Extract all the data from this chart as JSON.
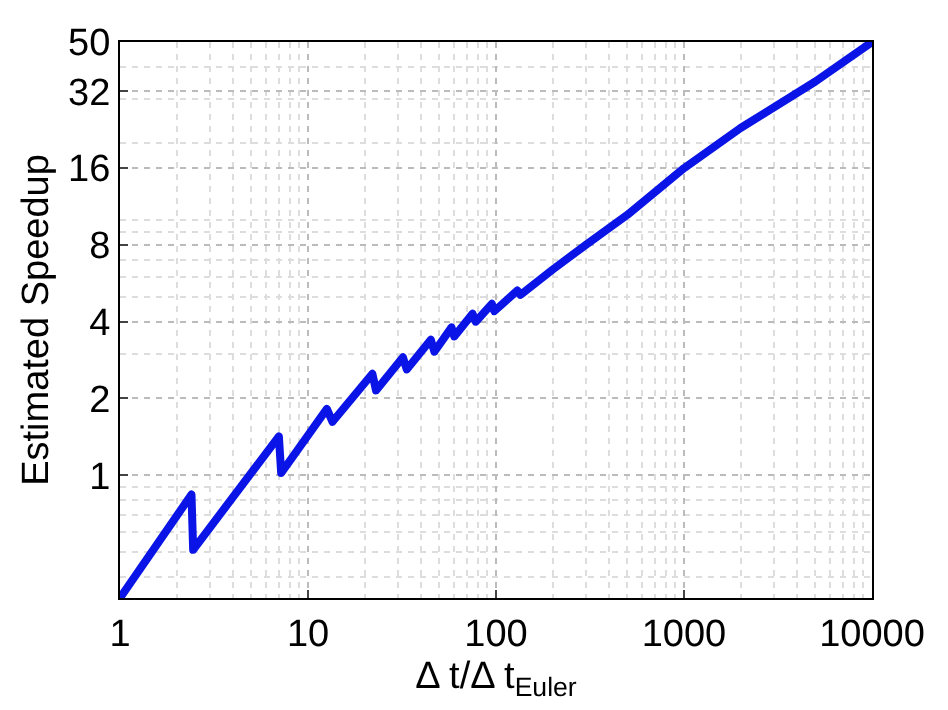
{
  "chart_data": {
    "type": "line",
    "xlabel": "Δ t/Δ t$_{Euler}$",
    "ylabel": "Estimated Speedup",
    "log": "xy",
    "grid": true,
    "marker": "none",
    "line_style": "solid",
    "xlim": [
      1,
      10000
    ],
    "xticks": [
      1,
      10,
      100,
      1000,
      10000
    ],
    "ylim": [
      0.33,
      50
    ],
    "yticks": [
      1,
      2,
      4,
      8,
      16,
      32,
      50
    ],
    "x": [
      1,
      2.4,
      2.45,
      7,
      7.2,
      12.6,
      13.5,
      22,
      23,
      32,
      33.5,
      45,
      47,
      58,
      60,
      75,
      78,
      95,
      98,
      130,
      135,
      200,
      300,
      500,
      1000,
      2000,
      5000,
      10000
    ],
    "series": [
      {
        "color": "#0a14e6",
        "values": [
          0.33,
          0.84,
          0.51,
          1.42,
          1.02,
          1.82,
          1.62,
          2.5,
          2.15,
          2.9,
          2.6,
          3.4,
          3.05,
          3.8,
          3.5,
          4.3,
          4.0,
          4.7,
          4.4,
          5.3,
          5.1,
          6.4,
          8,
          10.5,
          16,
          23,
          35,
          50
        ]
      }
    ]
  }
}
